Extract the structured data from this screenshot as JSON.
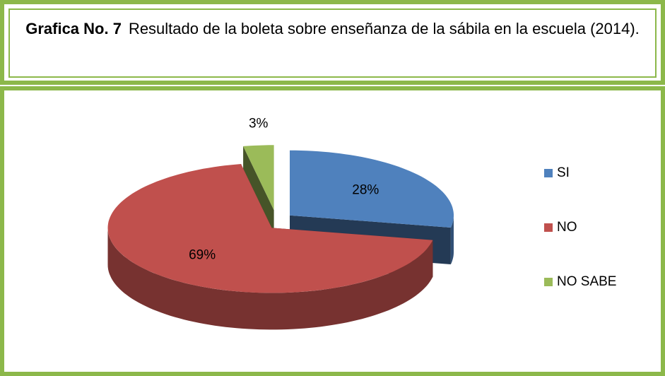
{
  "chart_data": {
    "type": "pie",
    "title_label": "Grafica No. 7",
    "title": "Resultado de la boleta sobre enseñanza de la sábila en la escuela  (2014).",
    "categories": [
      "SI",
      "NO",
      "NO SABE"
    ],
    "values": [
      28,
      69,
      3
    ],
    "value_labels": [
      "28%",
      "69%",
      "3%"
    ],
    "colors": [
      "#4f81bd",
      "#c0504d",
      "#9bbb59"
    ],
    "legend": "right"
  }
}
